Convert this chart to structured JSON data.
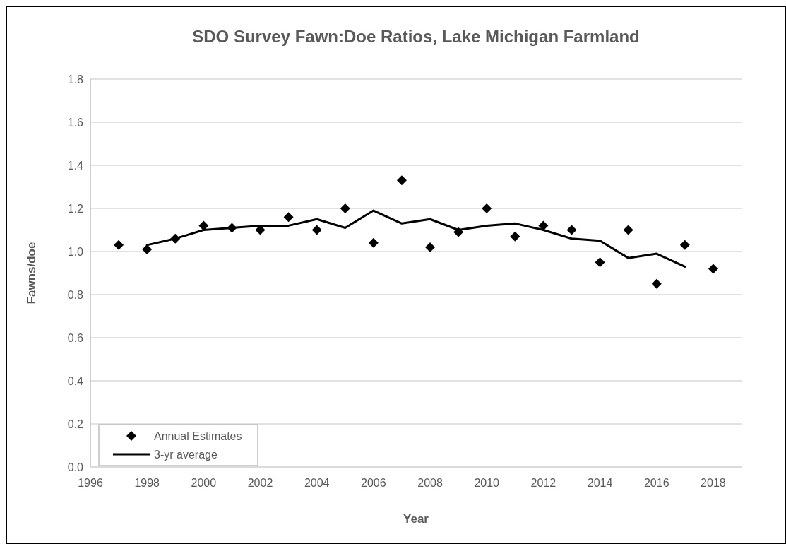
{
  "chart_data": {
    "type": "scatter",
    "title": "SDO Survey Fawn:Doe Ratios, Lake Michigan Farmland",
    "xlabel": "Year",
    "ylabel": "Fawns/doe",
    "xlim": [
      1996,
      2019
    ],
    "xticks": [
      1996,
      1998,
      2000,
      2002,
      2004,
      2006,
      2008,
      2010,
      2012,
      2014,
      2016,
      2018
    ],
    "ylim": [
      0,
      1.8
    ],
    "yticks": [
      {
        "value": 0,
        "label": "0.0"
      },
      0.2,
      0.4,
      0.6,
      0.8,
      {
        "value": 1,
        "label": "1.0"
      },
      1.2,
      1.4,
      1.6,
      1.8
    ],
    "grid": "y",
    "legend": "bottom left",
    "series": [
      {
        "name": "Annual Estimates",
        "marker": "diamond",
        "color": "#000000",
        "x": [
          1997,
          1998,
          1999,
          2000,
          2001,
          2002,
          2003,
          2004,
          2005,
          2006,
          2007,
          2008,
          2009,
          2010,
          2011,
          2012,
          2013,
          2014,
          2015,
          2016,
          2017,
          2018
        ],
        "values": [
          1.03,
          1.01,
          1.06,
          1.12,
          1.11,
          1.1,
          1.16,
          1.1,
          1.2,
          1.04,
          1.33,
          1.02,
          1.09,
          1.2,
          1.07,
          1.12,
          1.1,
          0.95,
          1.1,
          0.85,
          1.03,
          0.92
        ]
      },
      {
        "name": "3-yr average",
        "type": "line",
        "marker": "none",
        "line_style": "solid",
        "color": "#000000",
        "x": [
          1998,
          1999,
          2000,
          2001,
          2002,
          2003,
          2004,
          2005,
          2006,
          2007,
          2008,
          2009,
          2010,
          2011,
          2012,
          2013,
          2014,
          2015,
          2016,
          2017
        ],
        "values": [
          1.03,
          1.06,
          1.1,
          1.11,
          1.12,
          1.12,
          1.15,
          1.11,
          1.19,
          1.13,
          1.15,
          1.1,
          1.12,
          1.13,
          1.1,
          1.06,
          1.05,
          0.97,
          0.99,
          0.93
        ]
      }
    ]
  }
}
